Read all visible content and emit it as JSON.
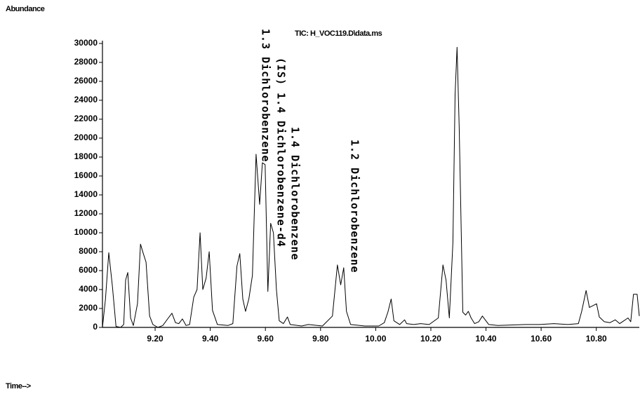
{
  "chart_data": {
    "type": "line",
    "title": "TIC: H_VOC119.D\\data.ms",
    "y_label": "Abundance",
    "x_label": "Time-->",
    "xlim": [
      9.009,
      10.956
    ],
    "ylim": [
      0,
      30000
    ],
    "xticks": [
      {
        "value": 9.2,
        "label": "9.20"
      },
      {
        "value": 9.4,
        "label": "9.40"
      },
      {
        "value": 9.6,
        "label": "9.60"
      },
      {
        "value": 9.8,
        "label": "9.80"
      },
      {
        "value": 10.0,
        "label": "10.00"
      },
      {
        "value": 10.2,
        "label": "10.20"
      },
      {
        "value": 10.4,
        "label": "10.40"
      },
      {
        "value": 10.6,
        "label": "10.60"
      },
      {
        "value": 10.8,
        "label": "10.80"
      }
    ],
    "yticks": [
      0,
      2000,
      4000,
      6000,
      8000,
      10000,
      12000,
      14000,
      16000,
      18000,
      20000,
      22000,
      24000,
      26000,
      28000,
      30000
    ],
    "grid": false,
    "color": "#000000",
    "x": [
      9.009,
      9.02,
      9.032,
      9.045,
      9.058,
      9.075,
      9.086,
      9.093,
      9.101,
      9.111,
      9.121,
      9.136,
      9.147,
      9.157,
      9.167,
      9.18,
      9.192,
      9.21,
      9.228,
      9.248,
      9.261,
      9.274,
      9.286,
      9.299,
      9.312,
      9.325,
      9.34,
      9.352,
      9.363,
      9.373,
      9.385,
      9.396,
      9.408,
      9.426,
      9.464,
      9.482,
      9.497,
      9.507,
      9.518,
      9.528,
      9.54,
      9.553,
      9.566,
      9.579,
      9.589,
      9.599,
      9.609,
      9.619,
      9.629,
      9.64,
      9.65,
      9.665,
      9.68,
      9.69,
      9.731,
      9.756,
      9.807,
      9.843,
      9.861,
      9.873,
      9.884,
      9.894,
      9.909,
      9.96,
      10.011,
      10.031,
      10.044,
      10.056,
      10.066,
      10.087,
      10.105,
      10.112,
      10.138,
      10.163,
      10.194,
      10.227,
      10.244,
      10.255,
      10.267,
      10.28,
      10.288,
      10.295,
      10.303,
      10.316,
      10.326,
      10.336,
      10.346,
      10.359,
      10.374,
      10.387,
      10.397,
      10.41,
      10.443,
      10.544,
      10.595,
      10.646,
      10.697,
      10.735,
      10.747,
      10.763,
      10.775,
      10.788,
      10.801,
      10.811,
      10.829,
      10.849,
      10.869,
      10.885,
      10.9,
      10.915,
      10.925,
      10.935,
      10.948,
      10.956
    ],
    "values": [
      0,
      3000,
      7900,
      4400,
      100,
      0,
      300,
      5000,
      5800,
      1000,
      200,
      2500,
      8800,
      7800,
      6900,
      1200,
      300,
      0,
      200,
      1000,
      1500,
      500,
      400,
      900,
      200,
      300,
      3200,
      4000,
      10000,
      4000,
      5200,
      8000,
      1800,
      300,
      200,
      400,
      6500,
      7800,
      3000,
      1700,
      3000,
      5500,
      18300,
      13000,
      17400,
      17200,
      3800,
      11000,
      10000,
      4000,
      700,
      400,
      1100,
      300,
      150,
      300,
      150,
      1200,
      6600,
      4500,
      6300,
      1700,
      300,
      150,
      150,
      500,
      1600,
      3000,
      700,
      300,
      800,
      400,
      300,
      400,
      300,
      1000,
      6600,
      5000,
      1000,
      9000,
      24600,
      29600,
      21000,
      1600,
      1300,
      1700,
      1000,
      400,
      600,
      1200,
      800,
      300,
      200,
      300,
      300,
      400,
      300,
      400,
      1700,
      3900,
      2100,
      2300,
      2500,
      1100,
      600,
      500,
      800,
      400,
      700,
      1000,
      600,
      3500,
      3500,
      1200
    ],
    "annotations": [
      "1.3 Dichlorobenzene",
      "(IS) 1.4 Dichlorobenzene-d4",
      "1.4 Dichlorobenzene",
      "1.2 Dichlorobenzene"
    ]
  }
}
